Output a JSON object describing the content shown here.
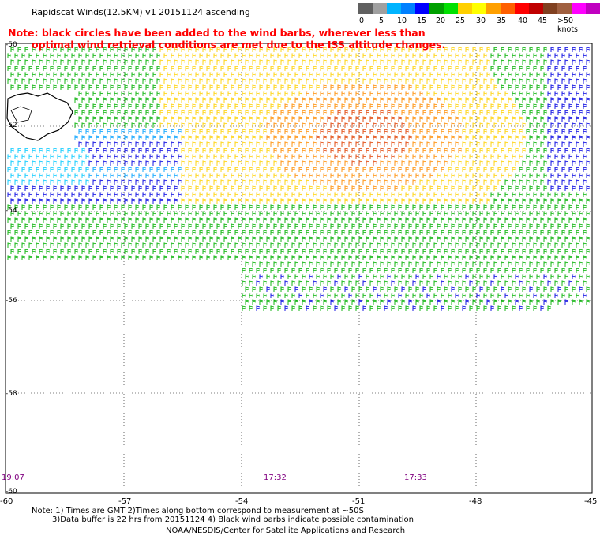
{
  "title": "Rapidscat Winds(12.5KM) v1 20151124 ascending",
  "note_lines": [
    "Note: black circles have been added to the wind barbs, wherever less than",
    "optimal wind retrieval conditions are met due to the ISS altitude changes."
  ],
  "legend": {
    "labels": [
      "0",
      "5",
      "10",
      "15",
      "20",
      "25",
      "30",
      "35",
      "40",
      "45",
      ">50 knots"
    ],
    "colors": [
      "#606060",
      "#a0a0a0",
      "#00b4ff",
      "#0080ff",
      "#0000ff",
      "#00a000",
      "#00e000",
      "#ffd000",
      "#ffff00",
      "#ffa000",
      "#ff6000",
      "#ff0000",
      "#c00000",
      "#804020",
      "#a06040",
      "#ff00ff",
      "#c000c0",
      "#6000a0"
    ]
  },
  "axes": {
    "x_ticks": [
      "-60",
      "-57",
      "-54",
      "-51",
      "-48",
      "-45"
    ],
    "y_ticks": [
      "-50",
      "-52",
      "-54",
      "-56",
      "-58",
      "-60"
    ]
  },
  "times": [
    "19:07",
    "17:32",
    "17:33"
  ],
  "footer": {
    "line1": "Note: 1) Times are GMT 2)Times along bottom correspond to measurement at ~50S",
    "line2": "3)Data buffer is 22 hrs from 20151124 4) Black wind barbs indicate possible contamination",
    "line3": "NOAA/NESDIS/Center for Satellite Applications and Research"
  },
  "map_data": {
    "lon_range": [
      -60,
      -45
    ],
    "lat_range": [
      -60,
      -50
    ],
    "regions": [
      {
        "name": "nw-cyan",
        "color": "#00c8ff"
      },
      {
        "name": "blue",
        "color": "#0000e0"
      },
      {
        "name": "green",
        "color": "#00b000"
      },
      {
        "name": "yellow",
        "color": "#ffd000"
      },
      {
        "name": "orange",
        "color": "#ff8c00"
      },
      {
        "name": "red-orange",
        "color": "#e04000"
      }
    ]
  }
}
